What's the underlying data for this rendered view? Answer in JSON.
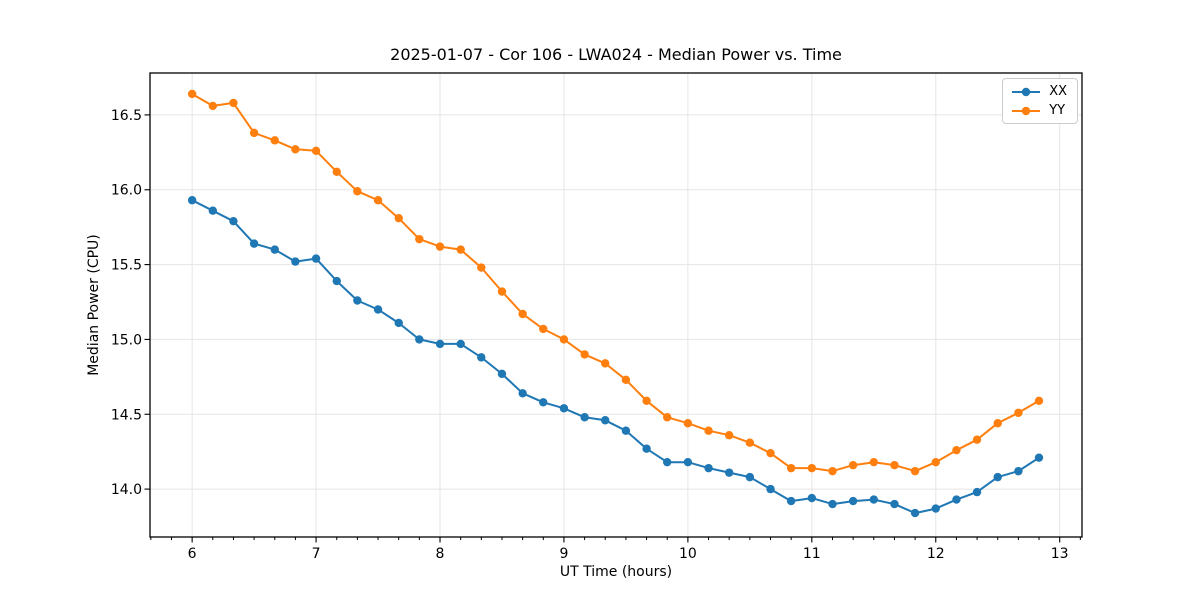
{
  "figure": {
    "title": "2025-01-07 - Cor 106 - LWA024 - Median Power vs. Time"
  },
  "chart_data": {
    "type": "line",
    "title": "2025-01-07 - Cor 106 - LWA024 - Median Power vs. Time",
    "xlabel": "UT Time (hours)",
    "ylabel": "Median Power (CPU)",
    "xlim": [
      5.66,
      13.18
    ],
    "ylim": [
      13.68,
      16.78
    ],
    "x_ticks": [
      6,
      7,
      8,
      9,
      10,
      11,
      12,
      13
    ],
    "x_minor_tick_step": 0.16667,
    "y_ticks": [
      14.0,
      14.5,
      15.0,
      15.5,
      16.0,
      16.5
    ],
    "grid": true,
    "grid_color": "#e5e5e5",
    "legend_position": "upper right",
    "marker": "circle",
    "x": [
      6.0,
      6.167,
      6.333,
      6.5,
      6.667,
      6.833,
      7.0,
      7.167,
      7.333,
      7.5,
      7.667,
      7.833,
      8.0,
      8.167,
      8.333,
      8.5,
      8.667,
      8.833,
      9.0,
      9.167,
      9.333,
      9.5,
      9.667,
      9.833,
      10.0,
      10.167,
      10.333,
      10.5,
      10.667,
      10.833,
      11.0,
      11.167,
      11.333,
      11.5,
      11.667,
      11.833,
      12.0,
      12.167,
      12.333,
      12.5,
      12.667,
      12.833
    ],
    "series": [
      {
        "name": "XX",
        "color": "#1f77b4",
        "values": [
          15.93,
          15.86,
          15.79,
          15.64,
          15.6,
          15.52,
          15.54,
          15.39,
          15.26,
          15.2,
          15.11,
          15.0,
          14.97,
          14.97,
          14.88,
          14.77,
          14.64,
          14.58,
          14.54,
          14.48,
          14.46,
          14.39,
          14.27,
          14.18,
          14.18,
          14.14,
          14.11,
          14.08,
          14.0,
          13.92,
          13.94,
          13.9,
          13.92,
          13.93,
          13.9,
          13.84,
          13.87,
          13.93,
          13.98,
          14.08,
          14.12,
          14.21
        ]
      },
      {
        "name": "YY",
        "color": "#ff7f0e",
        "values": [
          16.64,
          16.56,
          16.58,
          16.38,
          16.33,
          16.27,
          16.26,
          16.12,
          15.99,
          15.93,
          15.81,
          15.67,
          15.62,
          15.6,
          15.48,
          15.32,
          15.17,
          15.07,
          15.0,
          14.9,
          14.84,
          14.73,
          14.59,
          14.48,
          14.44,
          14.39,
          14.36,
          14.31,
          14.24,
          14.14,
          14.14,
          14.12,
          14.16,
          14.18,
          14.16,
          14.12,
          14.18,
          14.26,
          14.33,
          14.44,
          14.51,
          14.59
        ]
      }
    ]
  }
}
